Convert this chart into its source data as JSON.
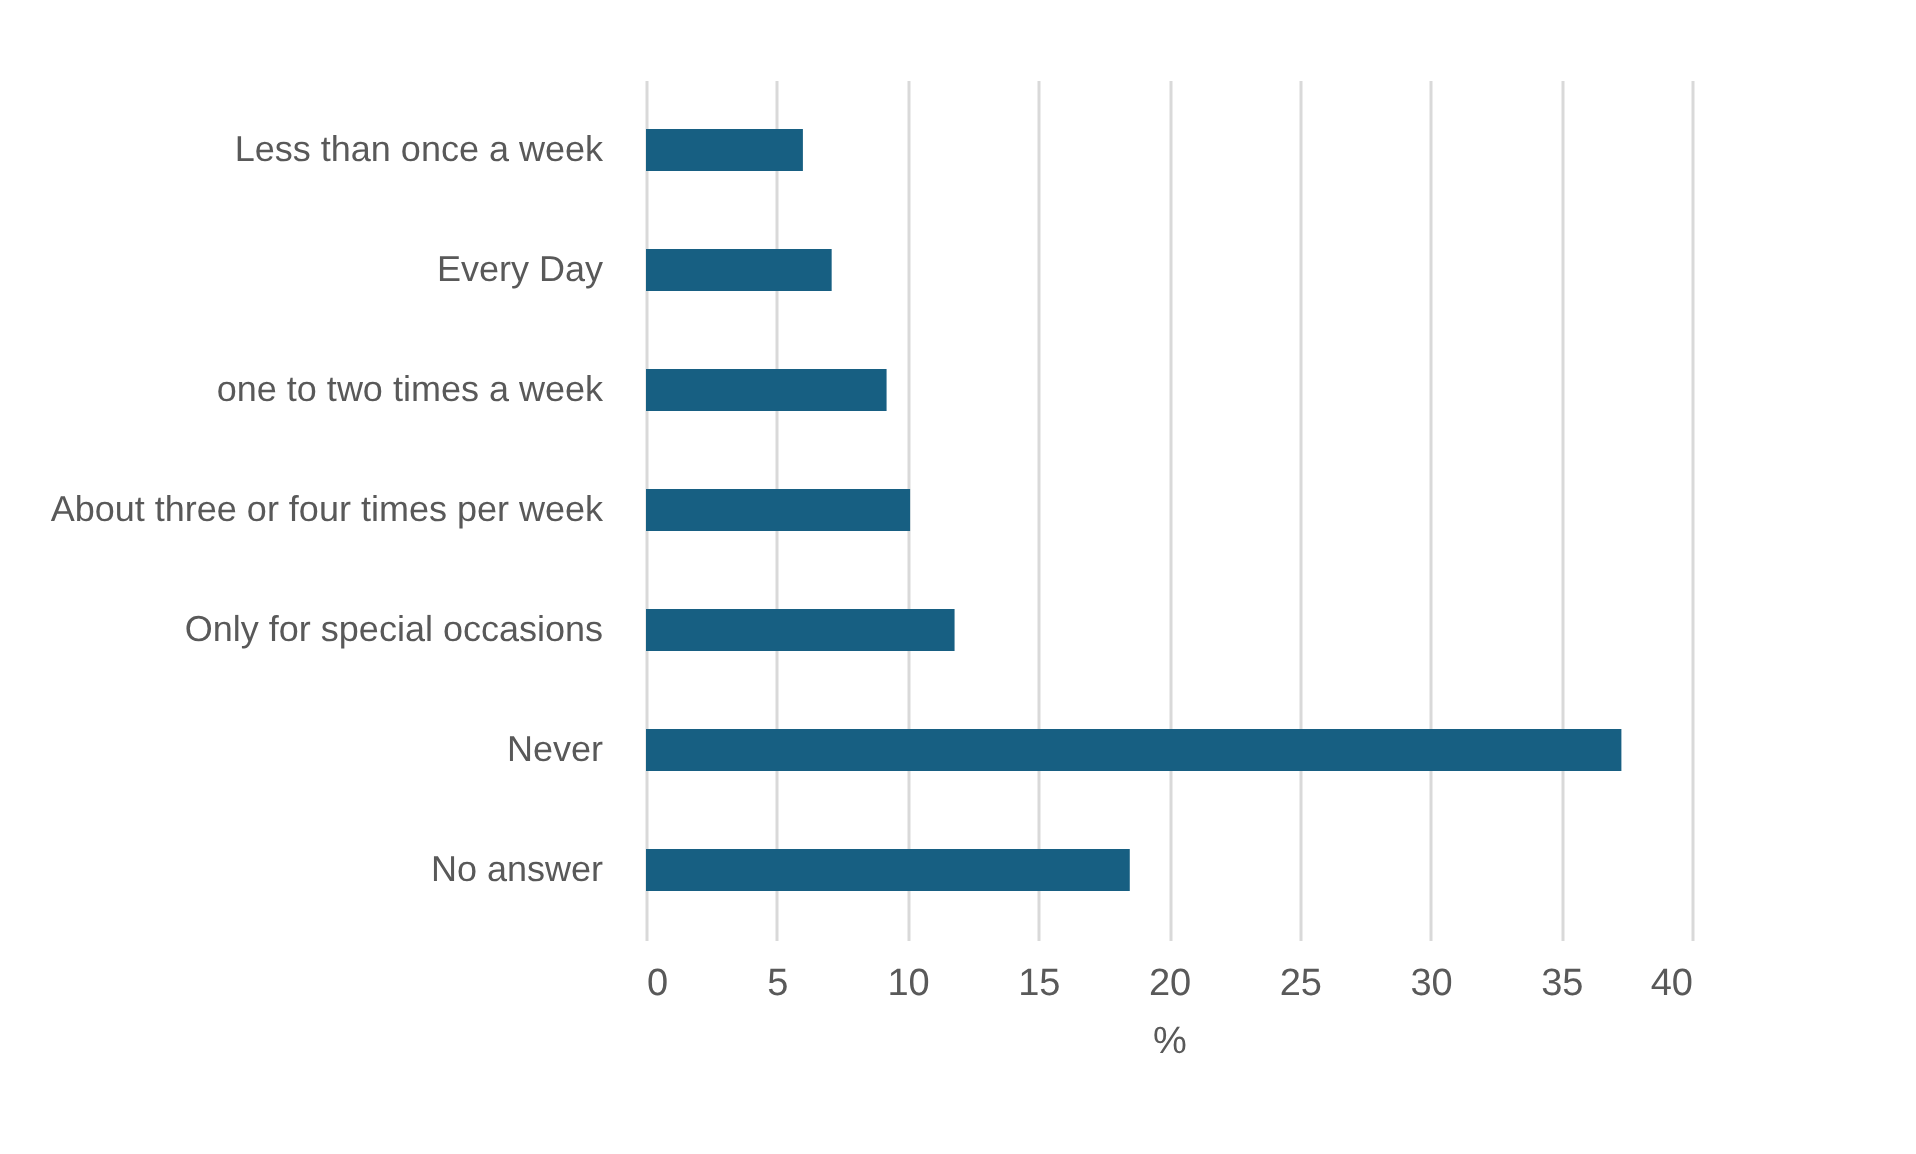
{
  "chart_data": {
    "type": "bar",
    "orientation": "horizontal",
    "xlabel": "%",
    "categories": [
      "Less than once a week",
      "Every Day",
      "one to two times a week",
      "About three or four times per week",
      "Only for special occasions",
      "Never",
      "No answer"
    ],
    "values": [
      6.0,
      7.1,
      9.2,
      10.1,
      11.8,
      37.3,
      18.5
    ],
    "color": "#175f82",
    "xlim": [
      0,
      40
    ],
    "xticks": [
      0,
      5,
      10,
      15,
      20,
      25,
      30,
      35,
      40
    ],
    "grid": "x"
  }
}
